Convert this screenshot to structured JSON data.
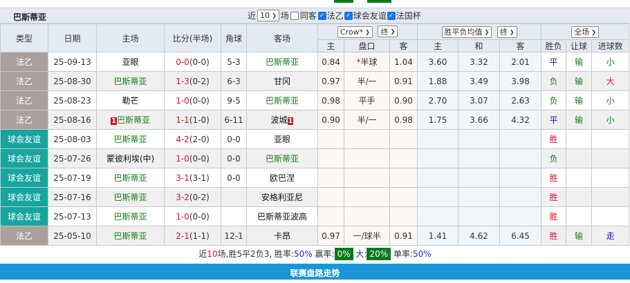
{
  "team": "巴斯蒂亚",
  "filters": {
    "recent_prefix": "近",
    "recent_count": "10",
    "recent_suffix": "场",
    "same_home_label": "同客",
    "same_home_checked": false,
    "leagues": [
      {
        "label": "法乙",
        "checked": true
      },
      {
        "label": "球会友谊",
        "checked": true
      },
      {
        "label": "法国杯",
        "checked": true
      }
    ]
  },
  "headers": {
    "type": "类型",
    "date": "日期",
    "home": "主场",
    "score": "比分(半场)",
    "corners": "角球",
    "away": "客场",
    "company_select": "Crow*",
    "period_select1": "终",
    "odds_select": "胜平负均值",
    "period_select2": "终",
    "range_select": "全场",
    "sub": [
      "主",
      "盘口",
      "客",
      "主",
      "和",
      "客",
      "胜负",
      "让球",
      "进球数"
    ]
  },
  "colors": {
    "league": "#aaa19f",
    "friendly": "#17a5a0",
    "win": "#e0102a",
    "draw": "#1010c0",
    "loss": "#1a7a1a",
    "header_bg": "#e4eaf2",
    "bottom_bar": "#1a95d5"
  },
  "rows": [
    {
      "type": "法乙",
      "kind": "league",
      "date": "25-09-13",
      "home": "亚眼",
      "home_is_team": false,
      "home_rank": "",
      "score": "0-0",
      "half": "(0-0)",
      "corners": "5-3",
      "away": "巴斯蒂亚",
      "away_is_team": true,
      "away_rank": "",
      "ah_home": "0.84",
      "ah_line": "*半球",
      "ah_away": "1.04",
      "eu_home": "3.60",
      "eu_draw": "3.32",
      "eu_away": "2.01",
      "result": "平",
      "handicap": "输",
      "ou": "小"
    },
    {
      "type": "法乙",
      "kind": "league",
      "date": "25-08-30",
      "home": "巴斯蒂亚",
      "home_is_team": true,
      "home_rank": "",
      "score": "1-3",
      "half": "(0-2)",
      "corners": "6-3",
      "away": "甘冈",
      "away_is_team": false,
      "away_rank": "",
      "ah_home": "0.97",
      "ah_line": "半/一",
      "ah_away": "0.91",
      "eu_home": "1.88",
      "eu_draw": "3.49",
      "eu_away": "3.98",
      "result": "负",
      "handicap": "输",
      "ou": "大"
    },
    {
      "type": "法乙",
      "kind": "league",
      "date": "25-08-23",
      "home": "勒芒",
      "home_is_team": false,
      "home_rank": "",
      "score": "1-0",
      "half": "(0-0)",
      "corners": "9-5",
      "away": "巴斯蒂亚",
      "away_is_team": true,
      "away_rank": "",
      "ah_home": "0.98",
      "ah_line": "平手",
      "ah_away": "0.90",
      "eu_home": "2.70",
      "eu_draw": "3.07",
      "eu_away": "2.63",
      "result": "负",
      "handicap": "输",
      "ou": "小"
    },
    {
      "type": "法乙",
      "kind": "league",
      "date": "25-08-16",
      "home": "巴斯蒂亚",
      "home_is_team": true,
      "home_rank": "1",
      "score": "1-1",
      "half": "(1-0)",
      "corners": "6-11",
      "away": "波城",
      "away_is_team": false,
      "away_rank": "1",
      "ah_home": "0.90",
      "ah_line": "半/一",
      "ah_away": "0.98",
      "eu_home": "1.75",
      "eu_draw": "3.66",
      "eu_away": "4.32",
      "result": "平",
      "handicap": "输",
      "ou": "小"
    },
    {
      "type": "球会友谊",
      "kind": "friendly",
      "date": "25-08-03",
      "home": "巴斯蒂亚",
      "home_is_team": true,
      "home_rank": "",
      "score": "4-2",
      "half": "(2-0)",
      "corners": "0-0",
      "away": "亚眼",
      "away_is_team": false,
      "away_rank": "",
      "ah_home": "",
      "ah_line": "",
      "ah_away": "",
      "eu_home": "",
      "eu_draw": "",
      "eu_away": "",
      "result": "胜",
      "handicap": "",
      "ou": ""
    },
    {
      "type": "球会友谊",
      "kind": "friendly",
      "date": "25-07-26",
      "home": "蒙彼利埃(中)",
      "home_is_team": false,
      "home_rank": "",
      "score": "1-0",
      "half": "(0-0)",
      "corners": "0-0",
      "away": "巴斯蒂亚",
      "away_is_team": true,
      "away_rank": "",
      "ah_home": "",
      "ah_line": "",
      "ah_away": "",
      "eu_home": "",
      "eu_draw": "",
      "eu_away": "",
      "result": "负",
      "handicap": "",
      "ou": ""
    },
    {
      "type": "球会友谊",
      "kind": "friendly",
      "date": "25-07-19",
      "home": "巴斯蒂亚",
      "home_is_team": true,
      "home_rank": "",
      "score": "3-1",
      "half": "(3-1)",
      "corners": "0-0",
      "away": "欧巴涅",
      "away_is_team": false,
      "away_rank": "",
      "ah_home": "",
      "ah_line": "",
      "ah_away": "",
      "eu_home": "",
      "eu_draw": "",
      "eu_away": "",
      "result": "胜",
      "handicap": "",
      "ou": ""
    },
    {
      "type": "球会友谊",
      "kind": "friendly",
      "date": "25-07-16",
      "home": "巴斯蒂亚",
      "home_is_team": true,
      "home_rank": "",
      "score": "3-2",
      "half": "(0-2)",
      "corners": "",
      "away": "安格利亚尼",
      "away_is_team": false,
      "away_rank": "",
      "ah_home": "",
      "ah_line": "",
      "ah_away": "",
      "eu_home": "",
      "eu_draw": "",
      "eu_away": "",
      "result": "胜",
      "handicap": "",
      "ou": ""
    },
    {
      "type": "球会友谊",
      "kind": "friendly",
      "date": "25-07-13",
      "home": "巴斯蒂亚",
      "home_is_team": true,
      "home_rank": "",
      "score": "1-0",
      "half": "(0-0)",
      "corners": "",
      "away": "巴斯蒂亚波高",
      "away_is_team": false,
      "away_rank": "",
      "ah_home": "",
      "ah_line": "",
      "ah_away": "",
      "eu_home": "",
      "eu_draw": "",
      "eu_away": "",
      "result": "胜",
      "handicap": "",
      "ou": ""
    },
    {
      "type": "法乙",
      "kind": "league",
      "date": "25-05-10",
      "home": "巴斯蒂亚",
      "home_is_team": true,
      "home_rank": "",
      "score": "2-1",
      "half": "(1-1)",
      "corners": "12-1",
      "away": "卡昂",
      "away_is_team": false,
      "away_rank": "",
      "ah_home": "0.97",
      "ah_line": "一/球半",
      "ah_away": "0.91",
      "eu_home": "1.41",
      "eu_draw": "4.62",
      "eu_away": "6.45",
      "result": "胜",
      "handicap": "输",
      "ou": "走"
    }
  ],
  "summary": {
    "p1": "近",
    "count": "10",
    "p2": "场,胜5平2负3, 胜率:",
    "win_rate": "50%",
    "p3": " 赢率:",
    "cover_rate": "0%",
    "p4": " 大:",
    "over_rate": "20%",
    "p5": " 单率:",
    "odd_rate": "50%"
  },
  "bottom_bar": "联赛盘路走势"
}
